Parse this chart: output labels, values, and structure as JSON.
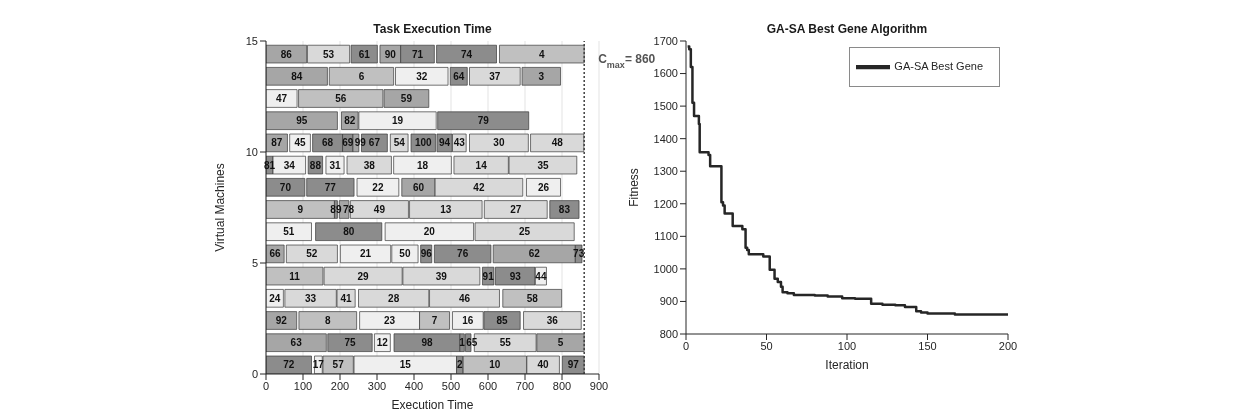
{
  "chart_data": [
    {
      "type": "bar",
      "orientation": "horizontal",
      "title": "Task Execution Time",
      "xlabel": "Execution Time",
      "ylabel": "Virtual Machines",
      "series": [
        {
          "name": "86",
          "color": "#a6a6a6",
          "x": [
            14.4
          ],
          "base": [
            0
          ],
          "values": [
            110
          ]
        },
        {
          "name": "53",
          "color": "#d9d9d9",
          "x": [
            14.4
          ],
          "base": [
            112
          ],
          "values": [
            114
          ]
        },
        {
          "name": "61",
          "color": "#8c8c8c",
          "x": [
            14.4
          ],
          "base": [
            230
          ],
          "values": [
            71
          ]
        },
        {
          "name": "90",
          "color": "#a6a6a6",
          "x": [
            14.4
          ],
          "base": [
            308
          ],
          "values": [
            56
          ]
        },
        {
          "name": "71",
          "color": "#8c8c8c",
          "x": [
            14.4
          ],
          "base": [
            364
          ],
          "values": [
            91
          ]
        },
        {
          "name": "74",
          "color": "#8c8c8c",
          "x": [
            14.4
          ],
          "base": [
            461
          ],
          "values": [
            162
          ]
        },
        {
          "name": "4",
          "color": "#c0c0c0",
          "x": [
            14.4
          ],
          "base": [
            631
          ],
          "values": [
            229
          ]
        },
        {
          "name": "84",
          "color": "#a6a6a6",
          "x": [
            13.4
          ],
          "base": [
            0
          ],
          "values": [
            166
          ]
        },
        {
          "name": "6",
          "color": "#c0c0c0",
          "x": [
            13.4
          ],
          "base": [
            171
          ],
          "values": [
            174
          ]
        },
        {
          "name": "32",
          "color": "#efefef",
          "x": [
            13.4
          ],
          "base": [
            350
          ],
          "values": [
            142
          ]
        },
        {
          "name": "64",
          "color": "#8c8c8c",
          "x": [
            13.4
          ],
          "base": [
            498
          ],
          "values": [
            46
          ]
        },
        {
          "name": "37",
          "color": "#d9d9d9",
          "x": [
            13.4
          ],
          "base": [
            550
          ],
          "values": [
            137
          ]
        },
        {
          "name": "3",
          "color": "#a6a6a6",
          "x": [
            13.4
          ],
          "base": [
            692
          ],
          "values": [
            104
          ]
        },
        {
          "name": "47",
          "color": "#efefef",
          "x": [
            12.4
          ],
          "base": [
            0
          ],
          "values": [
            84
          ]
        },
        {
          "name": "56",
          "color": "#c0c0c0",
          "x": [
            12.4
          ],
          "base": [
            88
          ],
          "values": [
            228
          ]
        },
        {
          "name": "59",
          "color": "#a6a6a6",
          "x": [
            12.4
          ],
          "base": [
            319
          ],
          "values": [
            121
          ]
        },
        {
          "name": "95",
          "color": "#a6a6a6",
          "x": [
            11.4
          ],
          "base": [
            0
          ],
          "values": [
            193
          ]
        },
        {
          "name": "82",
          "color": "#a6a6a6",
          "x": [
            11.4
          ],
          "base": [
            204
          ],
          "values": [
            45
          ]
        },
        {
          "name": "19",
          "color": "#efefef",
          "x": [
            11.4
          ],
          "base": [
            251
          ],
          "values": [
            209
          ]
        },
        {
          "name": "79",
          "color": "#8c8c8c",
          "x": [
            11.4
          ],
          "base": [
            464
          ],
          "values": [
            246
          ]
        },
        {
          "name": "87",
          "color": "#a6a6a6",
          "x": [
            10.4
          ],
          "base": [
            0
          ],
          "values": [
            58
          ]
        },
        {
          "name": "45",
          "color": "#efefef",
          "x": [
            10.4
          ],
          "base": [
            64
          ],
          "values": [
            56
          ]
        },
        {
          "name": "68",
          "color": "#8c8c8c",
          "x": [
            10.4
          ],
          "base": [
            126
          ],
          "values": [
            81
          ]
        },
        {
          "name": "69",
          "color": "#8c8c8c",
          "x": [
            10.4
          ],
          "base": [
            207
          ],
          "values": [
            28
          ]
        },
        {
          "name": "99",
          "color": "#a6a6a6",
          "x": [
            10.4
          ],
          "base": [
            235
          ],
          "values": [
            16
          ]
        },
        {
          "name": "67",
          "color": "#8c8c8c",
          "x": [
            10.4
          ],
          "base": [
            258
          ],
          "values": [
            70
          ]
        },
        {
          "name": "54",
          "color": "#d9d9d9",
          "x": [
            10.4
          ],
          "base": [
            336
          ],
          "values": [
            48
          ]
        },
        {
          "name": "100",
          "color": "#8c8c8c",
          "x": [
            10.4
          ],
          "base": [
            392
          ],
          "values": [
            66
          ]
        },
        {
          "name": "94",
          "color": "#8c8c8c",
          "x": [
            10.4
          ],
          "base": [
            462
          ],
          "values": [
            41
          ]
        },
        {
          "name": "43",
          "color": "#d9d9d9",
          "x": [
            10.4
          ],
          "base": [
            504
          ],
          "values": [
            37
          ]
        },
        {
          "name": "30",
          "color": "#d9d9d9",
          "x": [
            10.4
          ],
          "base": [
            550
          ],
          "values": [
            159
          ]
        },
        {
          "name": "48",
          "color": "#d9d9d9",
          "x": [
            10.4
          ],
          "base": [
            715
          ],
          "values": [
            144
          ]
        },
        {
          "name": "81",
          "color": "#8c8c8c",
          "x": [
            9.4
          ],
          "base": [
            0
          ],
          "values": [
            19
          ]
        },
        {
          "name": "34",
          "color": "#efefef",
          "x": [
            9.4
          ],
          "base": [
            19
          ],
          "values": [
            88
          ]
        },
        {
          "name": "88",
          "color": "#8c8c8c",
          "x": [
            9.4
          ],
          "base": [
            114
          ],
          "values": [
            39
          ]
        },
        {
          "name": "31",
          "color": "#efefef",
          "x": [
            9.4
          ],
          "base": [
            162
          ],
          "values": [
            49
          ]
        },
        {
          "name": "38",
          "color": "#d9d9d9",
          "x": [
            9.4
          ],
          "base": [
            219
          ],
          "values": [
            120
          ]
        },
        {
          "name": "18",
          "color": "#efefef",
          "x": [
            9.4
          ],
          "base": [
            345
          ],
          "values": [
            156
          ]
        },
        {
          "name": "14",
          "color": "#d9d9d9",
          "x": [
            9.4
          ],
          "base": [
            508
          ],
          "values": [
            147
          ]
        },
        {
          "name": "35",
          "color": "#d9d9d9",
          "x": [
            9.4
          ],
          "base": [
            657
          ],
          "values": [
            183
          ]
        },
        {
          "name": "70",
          "color": "#8c8c8c",
          "x": [
            8.4
          ],
          "base": [
            0
          ],
          "values": [
            105
          ]
        },
        {
          "name": "77",
          "color": "#8c8c8c",
          "x": [
            8.4
          ],
          "base": [
            110
          ],
          "values": [
            128
          ]
        },
        {
          "name": "22",
          "color": "#efefef",
          "x": [
            8.4
          ],
          "base": [
            246
          ],
          "values": [
            113
          ]
        },
        {
          "name": "60",
          "color": "#a6a6a6",
          "x": [
            8.4
          ],
          "base": [
            367
          ],
          "values": [
            90
          ]
        },
        {
          "name": "42",
          "color": "#d9d9d9",
          "x": [
            8.4
          ],
          "base": [
            457
          ],
          "values": [
            237
          ]
        },
        {
          "name": "26",
          "color": "#efefef",
          "x": [
            8.4
          ],
          "base": [
            704
          ],
          "values": [
            92
          ]
        },
        {
          "name": "9",
          "color": "#c0c0c0",
          "x": [
            7.4
          ],
          "base": [
            0
          ],
          "values": [
            185
          ]
        },
        {
          "name": "89",
          "color": "#8c8c8c",
          "x": [
            7.4
          ],
          "base": [
            185
          ],
          "values": [
            8
          ]
        },
        {
          "name": "78",
          "color": "#a6a6a6",
          "x": [
            7.4
          ],
          "base": [
            198
          ],
          "values": [
            26
          ]
        },
        {
          "name": "49",
          "color": "#d9d9d9",
          "x": [
            7.4
          ],
          "base": [
            228
          ],
          "values": [
            157
          ]
        },
        {
          "name": "13",
          "color": "#d9d9d9",
          "x": [
            7.4
          ],
          "base": [
            388
          ],
          "values": [
            196
          ]
        },
        {
          "name": "27",
          "color": "#d9d9d9",
          "x": [
            7.4
          ],
          "base": [
            590
          ],
          "values": [
            170
          ]
        },
        {
          "name": "83",
          "color": "#8c8c8c",
          "x": [
            7.4
          ],
          "base": [
            767
          ],
          "values": [
            79
          ]
        },
        {
          "name": "51",
          "color": "#efefef",
          "x": [
            6.4
          ],
          "base": [
            0
          ],
          "values": [
            123
          ]
        },
        {
          "name": "80",
          "color": "#8c8c8c",
          "x": [
            6.4
          ],
          "base": [
            134
          ],
          "values": [
            179
          ]
        },
        {
          "name": "20",
          "color": "#efefef",
          "x": [
            6.4
          ],
          "base": [
            322
          ],
          "values": [
            239
          ]
        },
        {
          "name": "25",
          "color": "#d9d9d9",
          "x": [
            6.4
          ],
          "base": [
            565
          ],
          "values": [
            268
          ]
        },
        {
          "name": "66",
          "color": "#a6a6a6",
          "x": [
            5.4
          ],
          "base": [
            0
          ],
          "values": [
            49
          ]
        },
        {
          "name": "52",
          "color": "#d9d9d9",
          "x": [
            5.4
          ],
          "base": [
            55
          ],
          "values": [
            138
          ]
        },
        {
          "name": "21",
          "color": "#efefef",
          "x": [
            5.4
          ],
          "base": [
            201
          ],
          "values": [
            136
          ]
        },
        {
          "name": "50",
          "color": "#efefef",
          "x": [
            5.4
          ],
          "base": [
            340
          ],
          "values": [
            71
          ]
        },
        {
          "name": "96",
          "color": "#8c8c8c",
          "x": [
            5.4
          ],
          "base": [
            418
          ],
          "values": [
            30
          ]
        },
        {
          "name": "76",
          "color": "#8c8c8c",
          "x": [
            5.4
          ],
          "base": [
            455
          ],
          "values": [
            153
          ]
        },
        {
          "name": "62",
          "color": "#a6a6a6",
          "x": [
            5.4
          ],
          "base": [
            614
          ],
          "values": [
            222
          ]
        },
        {
          "name": "73",
          "color": "#8c8c8c",
          "x": [
            5.4
          ],
          "base": [
            836
          ],
          "values": [
            18
          ]
        },
        {
          "name": "11",
          "color": "#c0c0c0",
          "x": [
            4.4
          ],
          "base": [
            0
          ],
          "values": [
            154
          ]
        },
        {
          "name": "29",
          "color": "#d9d9d9",
          "x": [
            4.4
          ],
          "base": [
            157
          ],
          "values": [
            211
          ]
        },
        {
          "name": "39",
          "color": "#d9d9d9",
          "x": [
            4.4
          ],
          "base": [
            370
          ],
          "values": [
            208
          ]
        },
        {
          "name": "91",
          "color": "#8c8c8c",
          "x": [
            4.4
          ],
          "base": [
            585
          ],
          "values": [
            31
          ]
        },
        {
          "name": "93",
          "color": "#8c8c8c",
          "x": [
            4.4
          ],
          "base": [
            620
          ],
          "values": [
            107
          ]
        },
        {
          "name": "44",
          "color": "#efefef",
          "x": [
            4.4
          ],
          "base": [
            728
          ],
          "values": [
            30
          ]
        },
        {
          "name": "24",
          "color": "#efefef",
          "x": [
            3.4
          ],
          "base": [
            0
          ],
          "values": [
            47
          ]
        },
        {
          "name": "33",
          "color": "#d9d9d9",
          "x": [
            3.4
          ],
          "base": [
            51
          ],
          "values": [
            139
          ]
        },
        {
          "name": "41",
          "color": "#d9d9d9",
          "x": [
            3.4
          ],
          "base": [
            192
          ],
          "values": [
            49
          ]
        },
        {
          "name": "28",
          "color": "#d9d9d9",
          "x": [
            3.4
          ],
          "base": [
            250
          ],
          "values": [
            190
          ]
        },
        {
          "name": "46",
          "color": "#d9d9d9",
          "x": [
            3.4
          ],
          "base": [
            442
          ],
          "values": [
            189
          ]
        },
        {
          "name": "58",
          "color": "#c0c0c0",
          "x": [
            3.4
          ],
          "base": [
            640
          ],
          "values": [
            159
          ]
        },
        {
          "name": "92",
          "color": "#a6a6a6",
          "x": [
            2.4
          ],
          "base": [
            0
          ],
          "values": [
            83
          ]
        },
        {
          "name": "8",
          "color": "#c0c0c0",
          "x": [
            2.4
          ],
          "base": [
            89
          ],
          "values": [
            156
          ]
        },
        {
          "name": "23",
          "color": "#efefef",
          "x": [
            2.4
          ],
          "base": [
            253
          ],
          "values": [
            162
          ]
        },
        {
          "name": "7",
          "color": "#c0c0c0",
          "x": [
            2.4
          ],
          "base": [
            415
          ],
          "values": [
            81
          ]
        },
        {
          "name": "16",
          "color": "#efefef",
          "x": [
            2.4
          ],
          "base": [
            504
          ],
          "values": [
            83
          ]
        },
        {
          "name": "85",
          "color": "#8c8c8c",
          "x": [
            2.4
          ],
          "base": [
            589
          ],
          "values": [
            98
          ]
        },
        {
          "name": "36",
          "color": "#d9d9d9",
          "x": [
            2.4
          ],
          "base": [
            696
          ],
          "values": [
            156
          ]
        },
        {
          "name": "63",
          "color": "#a6a6a6",
          "x": [
            1.4
          ],
          "base": [
            0
          ],
          "values": [
            163
          ]
        },
        {
          "name": "75",
          "color": "#8c8c8c",
          "x": [
            1.4
          ],
          "base": [
            167
          ],
          "values": [
            120
          ]
        },
        {
          "name": "12",
          "color": "#efefef",
          "x": [
            1.4
          ],
          "base": [
            293
          ],
          "values": [
            43
          ]
        },
        {
          "name": "98",
          "color": "#8c8c8c",
          "x": [
            1.4
          ],
          "base": [
            346
          ],
          "values": [
            178
          ]
        },
        {
          "name": "1",
          "color": "#8c8c8c",
          "x": [
            1.4
          ],
          "base": [
            524
          ],
          "values": [
            12
          ]
        },
        {
          "name": "65",
          "color": "#8c8c8c",
          "x": [
            1.4
          ],
          "base": [
            539
          ],
          "values": [
            15
          ]
        },
        {
          "name": "55",
          "color": "#d9d9d9",
          "x": [
            1.4
          ],
          "base": [
            563
          ],
          "values": [
            167
          ]
        },
        {
          "name": "5",
          "color": "#a6a6a6",
          "x": [
            1.4
          ],
          "base": [
            732
          ],
          "values": [
            128
          ]
        },
        {
          "name": "72",
          "color": "#8c8c8c",
          "x": [
            0.4
          ],
          "base": [
            0
          ],
          "values": [
            123
          ]
        },
        {
          "name": "17",
          "color": "#efefef",
          "x": [
            0.4
          ],
          "base": [
            131
          ],
          "values": [
            21
          ]
        },
        {
          "name": "57",
          "color": "#c0c0c0",
          "x": [
            0.4
          ],
          "base": [
            154
          ],
          "values": [
            82
          ]
        },
        {
          "name": "15",
          "color": "#efefef",
          "x": [
            0.4
          ],
          "base": [
            238
          ],
          "values": [
            277
          ]
        },
        {
          "name": "2",
          "color": "#8c8c8c",
          "x": [
            0.4
          ],
          "base": [
            515
          ],
          "values": [
            17
          ]
        },
        {
          "name": "10",
          "color": "#c0c0c0",
          "x": [
            0.4
          ],
          "base": [
            533
          ],
          "values": [
            171
          ]
        },
        {
          "name": "40",
          "color": "#d9d9d9",
          "x": [
            0.4
          ],
          "base": [
            705
          ],
          "values": [
            88
          ]
        },
        {
          "name": "97",
          "color": "#8c8c8c",
          "x": [
            0.4
          ],
          "base": [
            801
          ],
          "values": [
            59
          ]
        }
      ],
      "xlim": [
        0,
        900
      ],
      "xticks": [
        0,
        100,
        200,
        300,
        400,
        500,
        600,
        700,
        800,
        900
      ],
      "ylim": [
        0,
        15
      ],
      "yticks": [
        0,
        5,
        10,
        15
      ],
      "grid": "x",
      "ref_lines": [
        {
          "axis": "x",
          "value": 860,
          "label": "C$_{max}$= 860",
          "color": "#404040",
          "line_style": "dotted"
        }
      ]
    },
    {
      "type": "step",
      "title": "GA-SA Best Gene Algorithm",
      "xlabel": "Iteration",
      "ylabel": "Fitness",
      "legend": "top right",
      "series": [
        {
          "name": "GA-SA Best Gene",
          "color": "#262626",
          "x": [
            1,
            2,
            3,
            4,
            5,
            8,
            8.5,
            14,
            15,
            22,
            23,
            24,
            29,
            35,
            37,
            38,
            39,
            48,
            52,
            55,
            57,
            59,
            60,
            63,
            67,
            80,
            88,
            97,
            105,
            115,
            122,
            130,
            136,
            143,
            146,
            150,
            167,
            200
          ],
          "values": [
            1683,
            1675,
            1620,
            1510,
            1470,
            1445,
            1358,
            1350,
            1315,
            1205,
            1195,
            1170,
            1132,
            1122,
            1065,
            1058,
            1045,
            1038,
            997,
            970,
            960,
            945,
            928,
            925,
            920,
            918,
            915,
            910,
            908,
            893,
            890,
            888,
            883,
            870,
            866,
            863,
            860,
            860
          ]
        }
      ],
      "xlim": [
        0,
        200
      ],
      "xticks": [
        0,
        50,
        100,
        150,
        200
      ],
      "ylim": [
        800,
        1700
      ],
      "yticks": [
        800,
        900,
        1000,
        1100,
        1200,
        1300,
        1400,
        1500,
        1600,
        1700
      ]
    }
  ]
}
